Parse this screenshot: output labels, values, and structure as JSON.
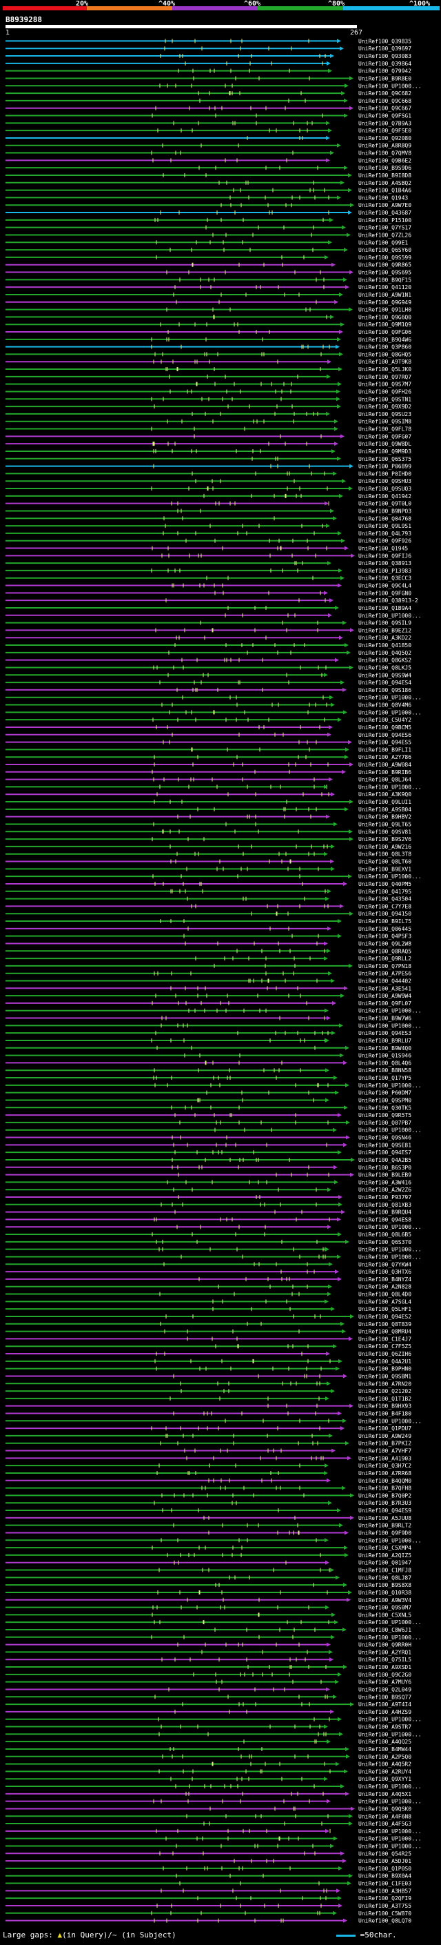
{
  "header": {
    "percent_ticks": [
      "20%",
      "^40%",
      "^60%",
      "^80%",
      "^100%"
    ],
    "band_colors": [
      "#e8101a",
      "#f07820",
      "#9a35c8",
      "#22a82a",
      "#18b8e8"
    ]
  },
  "query": {
    "id": "B8939288",
    "scale_start": "1",
    "scale_end": "267"
  },
  "hits": [
    "UniRef100_Q39835",
    "UniRef100_Q39697",
    "UniRef100_Q93083",
    "UniRef100_Q39864",
    "UniRef100_Q79942",
    "UniRef100_B9R8E0",
    "UniRef100_UP1000...",
    "UniRef100_Q9C682",
    "UniRef100_Q9C668",
    "UniRef100_Q9C667",
    "UniRef100_Q9FSG1",
    "UniRef100_Q7B9A3",
    "UniRef100_Q9FSE0",
    "UniRef100_Q92080",
    "UniRef100_A8R8Q9",
    "UniRef100_Q7QMV8",
    "UniRef100_Q9B6E2",
    "UniRef100_B9S9D6",
    "UniRef100_B9I8D8",
    "UniRef100_A4SBQ2",
    "UniRef100_Q1B4A6",
    "UniRef100_Q1943",
    "UniRef100_A9W7E0",
    "UniRef100_Q43687",
    "UniRef100_P15100",
    "UniRef100_Q7YS17",
    "UniRef100_Q7ZL26",
    "UniRef100_Q99E1",
    "UniRef100_Q6SY60",
    "UniRef100_Q9S599",
    "UniRef100_Q9R865",
    "UniRef100_Q9S695",
    "UniRef100_B9QF15",
    "UniRef100_Q41120",
    "UniRef100_A9W1N1",
    "UniRef100_Q9G949",
    "UniRef100_Q91LH0",
    "UniRef100_Q9G6Q0",
    "UniRef100_Q9M1Q9",
    "UniRef100_Q9FG06",
    "UniRef100_B9Q4W6",
    "UniRef100_Q3P860",
    "UniRef100_Q8GHQ5",
    "UniRef100_A9T9K8",
    "UniRef100_Q5LJK0",
    "UniRef100_Q97RQ7",
    "UniRef100_Q9S7M7",
    "UniRef100_Q9FH26",
    "UniRef100_Q9STN1",
    "UniRef100_Q9X9D2",
    "UniRef100_Q9SU23",
    "UniRef100_Q9SIM8",
    "UniRef100_Q9FL78",
    "UniRef100_Q9FG07",
    "UniRef100_Q9W8DL",
    "UniRef100_Q9M9D3",
    "UniRef100_Q6S375",
    "UniRef100_P06899",
    "UniRef100_P0IHD0",
    "UniRef100_Q9SHU3",
    "UniRef100_Q9SUQ3",
    "UniRef100_Q41942",
    "UniRef100_Q9T0L0",
    "UniRef100_B9NPO3",
    "UniRef100_Q04768",
    "UniRef100_Q9L9S1",
    "UniRef100_Q4L793",
    "UniRef100_Q9F926",
    "UniRef100_Q1945",
    "UniRef100_Q9FIJ6",
    "UniRef100_Q38913",
    "UniRef100_P13983",
    "UniRef100_Q3ECC3",
    "UniRef100_Q9C4L4",
    "UniRef100_Q9FGN0",
    "UniRef100_Q38913-2",
    "UniRef100_Q1B9A4",
    "UniRef100_UP1000...",
    "UniRef100_Q9SIL9",
    "UniRef100_B9EZ12",
    "UniRef100_A3KD22",
    "UniRef100_Q41850",
    "UniRef100_Q4Q5Q2",
    "UniRef100_Q8GKS2",
    "UniRef100_Q8LKJ5",
    "UniRef100_Q9S9W4",
    "UniRef100_Q94ES4",
    "UniRef100_Q9S186",
    "UniRef100_UP1000...",
    "UniRef100_Q8V4M6",
    "UniRef100_UP1000...",
    "UniRef100_C5U4Y2",
    "UniRef100_Q9BCM5",
    "UniRef100_Q94ES6",
    "UniRef100_Q94ES5",
    "UniRef100_B9FLI1",
    "UniRef100_A2Y786",
    "UniRef100_A9W084",
    "UniRef100_B9RIB6",
    "UniRef100_Q8LJ64",
    "UniRef100_UP1000...",
    "UniRef100_A3K9Q0",
    "UniRef100_Q9LUI1",
    "UniRef100_A9SB04",
    "UniRef100_B9HBV2",
    "UniRef100_Q9LT65",
    "UniRef100_Q9SV81",
    "UniRef100_B9S2V6",
    "UniRef100_A9W216",
    "UniRef100_Q8L3T8",
    "UniRef100_Q8LT60",
    "UniRef100_B9EXV1",
    "UniRef100_UP1000...",
    "UniRef100_Q40PM5",
    "UniRef100_Q41795",
    "UniRef100_Q43504",
    "UniRef100_C7Y7E8",
    "UniRef100_Q94150",
    "UniRef100_B9IL75",
    "UniRef100_Q06445",
    "UniRef100_Q4PSF3",
    "UniRef100_Q9L2W8",
    "UniRef100_Q8RAQ5",
    "UniRef100_Q9RLL2",
    "UniRef100_Q7PN18",
    "UniRef100_A7PES6",
    "UniRef100_Q44402",
    "UniRef100_A3E541",
    "UniRef100_A9W9W4",
    "UniRef100_Q9FL07",
    "UniRef100_UP1000...",
    "UniRef100_B9W7W6",
    "UniRef100_UP1000...",
    "UniRef100_Q94ES3",
    "UniRef100_B9RLU7",
    "UniRef100_B9W4Q0",
    "UniRef100_Q1S946",
    "UniRef100_Q8L4Q6",
    "UniRef100_B8NN58",
    "UniRef100_Q17YP5",
    "UniRef100_UP1000...",
    "UniRef100_P60DM7",
    "UniRef100_Q9SPM0",
    "UniRef100_Q30TK5",
    "UniRef100_Q9R5T5",
    "UniRef100_Q07PB7",
    "UniRef100_UP1000...",
    "UniRef100_Q9SN46",
    "UniRef100_Q9SE81",
    "UniRef100_Q94ES7",
    "UniRef100_Q4A2B5",
    "UniRef100_B6S3P0",
    "UniRef100_B9LEB9",
    "UniRef100_A3W416",
    "UniRef100_A2W2Z6",
    "UniRef100_P93797",
    "UniRef100_Q81XB3",
    "UniRef100_B9RQU4",
    "UniRef100_Q94ES8",
    "UniRef100_UP1000...",
    "UniRef100_Q8L6B5",
    "UniRef100_Q6S370",
    "UniRef100_UP1000...",
    "UniRef100_UP1000...",
    "UniRef100_Q7YKW4",
    "UniRef100_Q3HTX6",
    "UniRef100_B4NYZ4",
    "UniRef100_A2N828",
    "UniRef100_Q8L4D0",
    "UniRef100_A7SGL4",
    "UniRef100_Q5LHF1",
    "UniRef100_Q94ES2",
    "UniRef100_Q8T839",
    "UniRef100_Q8MRU4",
    "UniRef100_C1E4J7",
    "UniRef100_C7F5Z5",
    "UniRef100_Q6ZIH6",
    "UniRef100_Q4A2U1",
    "UniRef100_B9PHN0",
    "UniRef100_Q9SBM1",
    "UniRef100_A7RN20",
    "UniRef100_Q21202",
    "UniRef100_Q1T1B2",
    "UniRef100_B9HX93",
    "UniRef100_B4F180",
    "UniRef100_UP1000...",
    "UniRef100_Q1PDU7",
    "UniRef100_A9W249",
    "UniRef100_B7PKI2",
    "UniRef100_A7VHF7",
    "UniRef100_A41903",
    "UniRef100_Q3H7C2",
    "UniRef100_A7RR68",
    "UniRef100_B4QQM0",
    "UniRef100_B7QFH8",
    "UniRef100_B7Q0P2",
    "UniRef100_B7R3U3",
    "UniRef100_Q94ES9",
    "UniRef100_A5JUU8",
    "UniRef100_B9RLT2",
    "UniRef100_Q9F9D0",
    "UniRef100_UP1000...",
    "UniRef100_C5XMP4",
    "UniRef100_A2QIZ5",
    "UniRef100_Q01947",
    "UniRef100_C1MFJ8",
    "UniRef100_Q8LJ87",
    "UniRef100_B9S8X8",
    "UniRef100_Q10R38",
    "UniRef100_A9W3V4",
    "UniRef100_Q9S0M7",
    "UniRef100_C5XNL5",
    "UniRef100_UP1000...",
    "UniRef100_C8W6J1",
    "UniRef100_UP1000...",
    "UniRef100_Q9RR0H",
    "UniRef100_A2YRQ1",
    "UniRef100_Q75IL5",
    "UniRef100_A9XSD1",
    "UniRef100_Q9C2G0",
    "UniRef100_A7MUY6",
    "UniRef100_Q2L049",
    "UniRef100_B9SQ77",
    "UniRef100_A9T4I4",
    "UniRef100_A4HZS9",
    "UniRef100_UP1000...",
    "UniRef100_A9STR7",
    "UniRef100_UP1000...",
    "UniRef100_A4QQ25",
    "UniRef100_B4MW44",
    "UniRef100_A2P5Q0",
    "UniRef100_A4Q5R2",
    "UniRef100_A2RUY4",
    "UniRef100_Q9XYY1",
    "UniRef100_UP1000...",
    "UniRef100_A4Q5X1",
    "UniRef100_UP1000...",
    "UniRef100_Q9QSK0",
    "UniRef100_A4F6N8",
    "UniRef100_A4F5G3",
    "UniRef100_UP1000...",
    "UniRef100_UP1000...",
    "UniRef100_UP1000...",
    "UniRef100_Q54R25",
    "UniRef100_A5DJ01",
    "UniRef100_Q1P0S0",
    "UniRef100_B9X0A4",
    "UniRef100_C1FE03",
    "UniRef100_A3HB57",
    "UniRef100_Q2QFI9",
    "UniRef100_A3T7S5",
    "UniRef100_C5W870",
    "UniRef100_Q8LQ70"
  ],
  "footer": {
    "gaps_prefix": "Large gaps:",
    "gaps_query": "(in Query)",
    "gaps_subject": "/~ (in Subject)",
    "scale_note": "=50char."
  }
}
